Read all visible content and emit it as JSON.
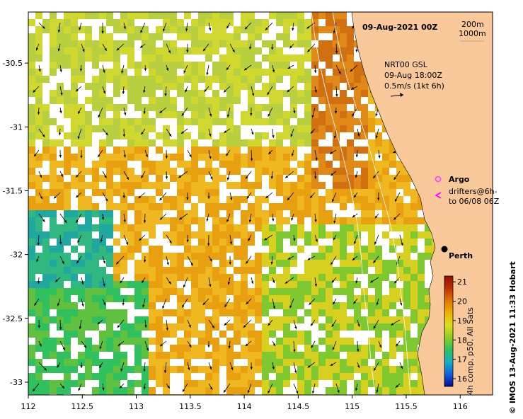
{
  "header": {
    "date": "09-Aug-2021 00Z",
    "depth_legend": [
      "200m",
      "1000m"
    ]
  },
  "current_legend": {
    "lines": [
      "NRT00 GSL",
      "09-Aug 18:00Z",
      "0.5m/s (1kt 6h)"
    ]
  },
  "markers": {
    "argo_label": "Argo",
    "drifters_label_1": "drifters@6h-",
    "drifters_label_2": "to 06/08 06Z",
    "city": "Perth"
  },
  "axes": {
    "x_ticks": [
      "112",
      "112.5",
      "113",
      "113.5",
      "114",
      "114.5",
      "115",
      "115.5",
      "116"
    ],
    "x_values": [
      112,
      112.5,
      113,
      113.5,
      114,
      114.5,
      115,
      115.5,
      116
    ],
    "y_ticks": [
      "-30.5",
      "-31",
      "-31.5",
      "-32",
      "-32.5",
      "-33"
    ],
    "y_values": [
      -30.5,
      -31,
      -31.5,
      -32,
      -32.5,
      -33
    ],
    "xlim": [
      112,
      116.3
    ],
    "ylim": [
      -33.1,
      -30.1
    ]
  },
  "colorbar": {
    "ticks": [
      "21",
      "20",
      "19",
      "18",
      "17",
      "16"
    ],
    "values": [
      21,
      20,
      19,
      18,
      17,
      16
    ],
    "range": [
      15.6,
      21.3
    ],
    "label": "4h comp, p50, All Sats",
    "colors": [
      "#0a0a8a",
      "#1060e0",
      "#18b0c0",
      "#30c060",
      "#90d020",
      "#d8e020",
      "#f0b000",
      "#e07800",
      "#c03000",
      "#901000"
    ]
  },
  "credit": "© IMOS 13-Aug-2021 11:33 Hobart",
  "colors": {
    "land": "#f9c89b",
    "argo": "#ff40ff",
    "drifter": "#ff00ff"
  }
}
